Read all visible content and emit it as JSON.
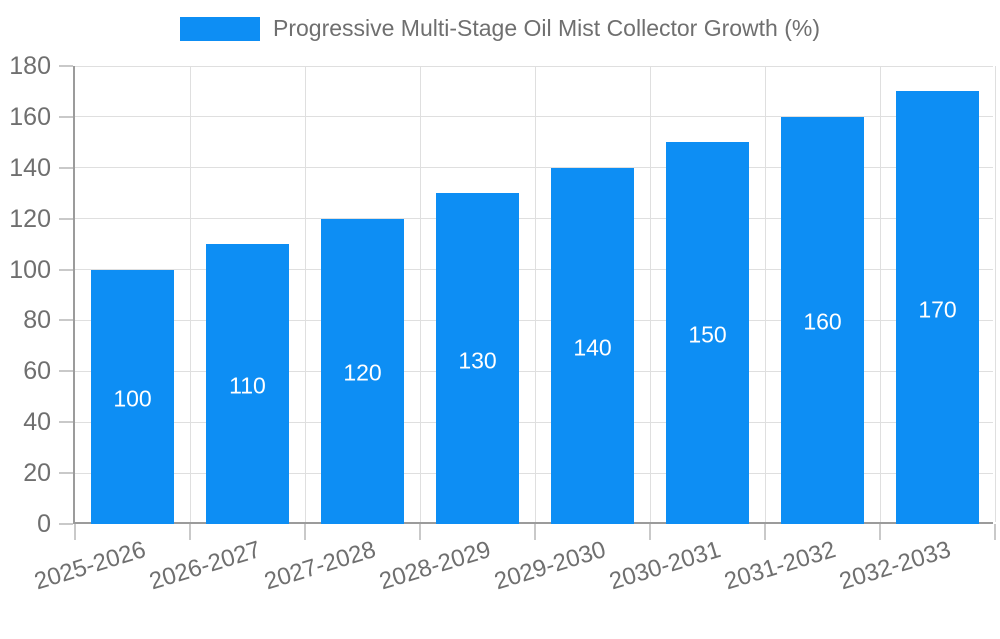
{
  "legend": {
    "label": "Progressive Multi-Stage Oil Mist Collector Growth (%)"
  },
  "colors": {
    "bar": "#0d8ef4",
    "bar_label": "#ffffff",
    "grid": "#dfdfdf",
    "axis": "#9b9b9b",
    "tick": "#c9c9c9",
    "text": "#6f6f6f",
    "background": "#ffffff"
  },
  "chart_data": {
    "type": "bar",
    "title": "Progressive Multi-Stage Oil Mist Collector Growth (%)",
    "categories": [
      "2025-2026",
      "2026-2027",
      "2027-2028",
      "2028-2029",
      "2029-2030",
      "2030-2031",
      "2031-2032",
      "2032-2033"
    ],
    "values": [
      100,
      110,
      120,
      130,
      140,
      150,
      160,
      170
    ],
    "series": [
      {
        "name": "Progressive Multi-Stage Oil Mist Collector Growth (%)",
        "values": [
          100,
          110,
          120,
          130,
          140,
          150,
          160,
          170
        ]
      }
    ],
    "xlabel": "",
    "ylabel": "",
    "ylim": [
      0,
      180
    ],
    "ytick_step": 20,
    "grid": true,
    "legend_position": "top",
    "bar_value_labels": "centered-white",
    "x_label_rotation_deg": -17
  }
}
